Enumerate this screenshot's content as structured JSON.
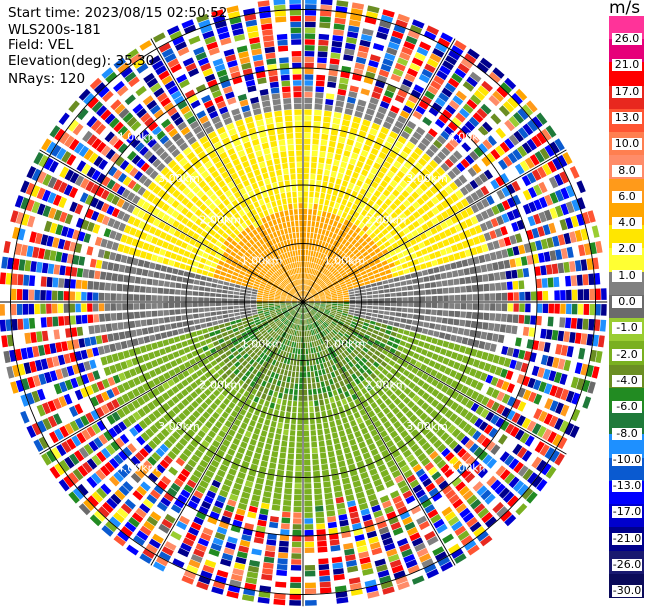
{
  "header": {
    "start_time": "Start time: 2023/08/15 02:50:52",
    "site": "WLS200s-181",
    "field": "Field: VEL",
    "elevation": "Elevation(deg): 35.30",
    "nrays": "NRays: 120"
  },
  "colorbar": {
    "title": "m/s",
    "ticks": [
      "26.0",
      "21.0",
      "17.0",
      "13.0",
      "10.0",
      "8.0",
      "6.0",
      "4.0",
      "2.0",
      "1.0",
      "0.0",
      "-1.0",
      "-2.0",
      "-4.0",
      "-6.0",
      "-8.0",
      "-10.0",
      "-13.0",
      "-17.0",
      "-21.0",
      "-26.0",
      "-30.0"
    ],
    "colors": [
      "#ff3399",
      "#e6007a",
      "#ff0000",
      "#e8281f",
      "#ff5533",
      "#ff7f50",
      "#ff8c69",
      "#ff9a1a",
      "#ffa500",
      "#ffe600",
      "#ffff33",
      "#808080",
      "#6b6b6b",
      "#9acd32",
      "#7ab020",
      "#6b8e23",
      "#228b22",
      "#1f7a3a",
      "#1e90ff",
      "#0a5ad0",
      "#0000ff",
      "#0000cd",
      "#00008b",
      "#191970",
      "#0b0b5a"
    ]
  },
  "chart_data": {
    "type": "heatmap",
    "title": "",
    "field": "VEL",
    "units": "m/s",
    "projection": "polar PPI",
    "nrays": 120,
    "elevation_deg": 35.3,
    "range_ring_labels": [
      "1.00km",
      "2.00km",
      "3.00km",
      "4.00km"
    ],
    "range_rings_km": [
      1,
      2,
      3,
      4,
      5
    ],
    "max_range_km": 5.2,
    "velocity_regions": [
      {
        "azimuth_deg": [
          270,
          90
        ],
        "through": "north",
        "range_km": [
          0,
          1.6
        ],
        "velocity_m_s": [
          2,
          6
        ],
        "description": "orange core"
      },
      {
        "azimuth_deg": [
          270,
          90
        ],
        "through": "north",
        "range_km": [
          1.6,
          3.2
        ],
        "velocity_m_s": [
          1,
          4
        ],
        "description": "yellow band"
      },
      {
        "azimuth_deg": [
          80,
          100
        ],
        "range_km": [
          0,
          3.2
        ],
        "velocity_m_s": [
          -1,
          1
        ],
        "description": "gray near-zero band east"
      },
      {
        "azimuth_deg": [
          260,
          280
        ],
        "range_km": [
          0,
          3.2
        ],
        "velocity_m_s": [
          -1,
          1
        ],
        "description": "gray near-zero band west"
      },
      {
        "azimuth_deg": [
          90,
          270
        ],
        "through": "south",
        "range_km": [
          0,
          1.6
        ],
        "velocity_m_s": [
          -8,
          -4
        ],
        "description": "dark green core"
      },
      {
        "azimuth_deg": [
          90,
          270
        ],
        "through": "south",
        "range_km": [
          1.6,
          3.7
        ],
        "velocity_m_s": [
          -4,
          -1
        ],
        "description": "olive/yellow-green band"
      },
      {
        "azimuth_deg": [
          0,
          360
        ],
        "range_km": [
          3.2,
          5.2
        ],
        "velocity_m_s": [
          -30,
          26
        ],
        "description": "noisy/aliased outer ring"
      }
    ]
  }
}
